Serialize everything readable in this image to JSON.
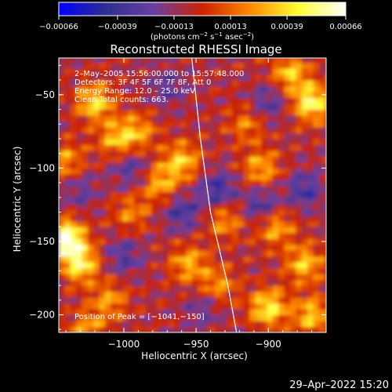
{
  "chart_data": {
    "type": "heatmap",
    "title": "Reconstructed RHESSI Image",
    "xlabel": "Heliocentric X (arcsec)",
    "ylabel": "Heliocentric Y (arcsec)",
    "xlim": [
      -1045,
      -860
    ],
    "ylim": [
      -212,
      -25
    ],
    "x_ticks": [
      -1000,
      -950,
      -900
    ],
    "y_ticks": [
      -50,
      -100,
      -150,
      -200
    ],
    "x_tick_labels": [
      "−1000",
      "−950",
      "−900"
    ],
    "y_tick_labels": [
      "−50",
      "−100",
      "−150",
      "−200"
    ],
    "colorbar": {
      "range": [
        -0.00066,
        0.00066
      ],
      "tick_values": [
        -0.00066,
        -0.00039,
        -0.00013,
        0.00013,
        0.00039,
        0.00066
      ],
      "tick_labels": [
        "−0.00066",
        "−0.00039",
        "−0.00013",
        "0.00013",
        "0.00039",
        "0.00066"
      ],
      "units_line1": "(photons cm",
      "units_sup1": "−2",
      "units_mid1": " s",
      "units_sup2": "−1",
      "units_mid2": " asec",
      "units_sup3": "−2",
      "units_end": ")"
    },
    "annotations": [
      "2–May–2005 15:56:00.000 to 15:57:48.000",
      "Detectors: 3F 4F 5F 6F 7F 8F, Att 0",
      "Energy Range: 12.0 – 25.0 keV",
      "Clean     Total counts: 663."
    ],
    "peak_label": "Position of Peak = [−1041,−150]",
    "peak_position": [
      -1041,
      -150
    ],
    "timestamp": "29–Apr–2022 15:20",
    "colormap_stops": [
      "#0000ff",
      "#2f2f8f",
      "#6b3fa0",
      "#cc2200",
      "#ff8800",
      "#ffff33",
      "#ffffff"
    ],
    "hotspots": [
      {
        "x": -1040,
        "y": -148,
        "intensity": 0.0007
      },
      {
        "x": -1030,
        "y": -165,
        "intensity": 0.0005
      },
      {
        "x": -1020,
        "y": -55,
        "intensity": 0.00045
      },
      {
        "x": -1005,
        "y": -80,
        "intensity": 0.00035
      },
      {
        "x": -990,
        "y": -75,
        "intensity": 0.0003
      },
      {
        "x": -960,
        "y": -95,
        "intensity": 0.0004
      },
      {
        "x": -975,
        "y": -110,
        "intensity": 0.00035
      },
      {
        "x": -870,
        "y": -55,
        "intensity": 0.00055
      },
      {
        "x": -885,
        "y": -35,
        "intensity": 0.0004
      },
      {
        "x": -895,
        "y": -140,
        "intensity": 0.00035
      },
      {
        "x": -875,
        "y": -165,
        "intensity": 0.0004
      },
      {
        "x": -900,
        "y": -195,
        "intensity": 0.0005
      },
      {
        "x": -870,
        "y": -200,
        "intensity": 0.0004
      },
      {
        "x": -935,
        "y": -180,
        "intensity": 0.0003
      },
      {
        "x": -955,
        "y": -165,
        "intensity": 0.00035
      },
      {
        "x": -1010,
        "y": -190,
        "intensity": 0.0003
      },
      {
        "x": -1025,
        "y": -210,
        "intensity": 0.0003
      },
      {
        "x": -905,
        "y": -100,
        "intensity": 0.00035
      },
      {
        "x": -930,
        "y": -135,
        "intensity": 0.0003
      },
      {
        "x": -995,
        "y": -130,
        "intensity": 0.00025
      },
      {
        "x": -915,
        "y": -70,
        "intensity": 0.00025
      },
      {
        "x": -1040,
        "y": -95,
        "intensity": 0.0003
      }
    ],
    "coldspots": [
      {
        "x": -935,
        "y": -115,
        "intensity": -0.00035
      },
      {
        "x": -960,
        "y": -130,
        "intensity": -0.0003
      },
      {
        "x": -995,
        "y": -100,
        "intensity": -0.00025
      },
      {
        "x": -905,
        "y": -125,
        "intensity": -0.0003
      },
      {
        "x": -875,
        "y": -115,
        "intensity": -0.0003
      },
      {
        "x": -1000,
        "y": -160,
        "intensity": -0.00025
      },
      {
        "x": -900,
        "y": -55,
        "intensity": -0.00025
      },
      {
        "x": -970,
        "y": -45,
        "intensity": -0.00022
      },
      {
        "x": -1030,
        "y": -115,
        "intensity": -0.0002
      },
      {
        "x": -945,
        "y": -195,
        "intensity": -0.0002
      }
    ],
    "limb_curve": [
      [
        -953,
        -25
      ],
      [
        -947,
        -80
      ],
      [
        -940,
        -130
      ],
      [
        -928,
        -180
      ],
      [
        -922,
        -212
      ]
    ]
  }
}
